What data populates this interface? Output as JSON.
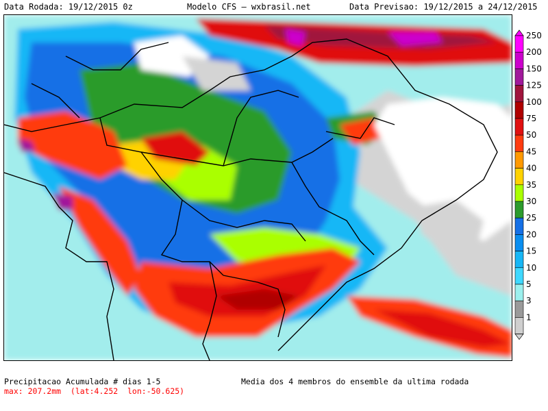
{
  "header": {
    "run_date": "Data Rodada: 19/12/2015 0z",
    "model": "Modelo CFS — wxbrasil.net",
    "forecast_date": "Data Previsao: 19/12/2015 a 24/12/2015"
  },
  "legend": {
    "levels": [
      {
        "label": "250",
        "color": "#ff00ff"
      },
      {
        "label": "200",
        "color": "#cc00cc"
      },
      {
        "label": "150",
        "color": "#a1199b"
      },
      {
        "label": "125",
        "color": "#a0143c"
      },
      {
        "label": "100",
        "color": "#b00000"
      },
      {
        "label": "75",
        "color": "#e01010"
      },
      {
        "label": "50",
        "color": "#ff3b0f"
      },
      {
        "label": "45",
        "color": "#ff9900"
      },
      {
        "label": "40",
        "color": "#ffd200"
      },
      {
        "label": "35",
        "color": "#aaff00"
      },
      {
        "label": "30",
        "color": "#2c9b2c"
      },
      {
        "label": "25",
        "color": "#1570e6"
      },
      {
        "label": "20",
        "color": "#0a8ef0"
      },
      {
        "label": "15",
        "color": "#17b7f6"
      },
      {
        "label": "10",
        "color": "#3fd8ff"
      },
      {
        "label": "5",
        "color": "#9cf0ee"
      },
      {
        "label": "3",
        "color": "#9a9a9a"
      },
      {
        "label": "1",
        "color": "#cfcfcf"
      }
    ]
  },
  "footer": {
    "title": "Precipitacao Acumulada # dias 1-5",
    "max": "max: 207.2mm  (lat:4.252  lon:-50.625)",
    "note": "Media dos 4 membros do ensemble da ultima rodada"
  }
}
